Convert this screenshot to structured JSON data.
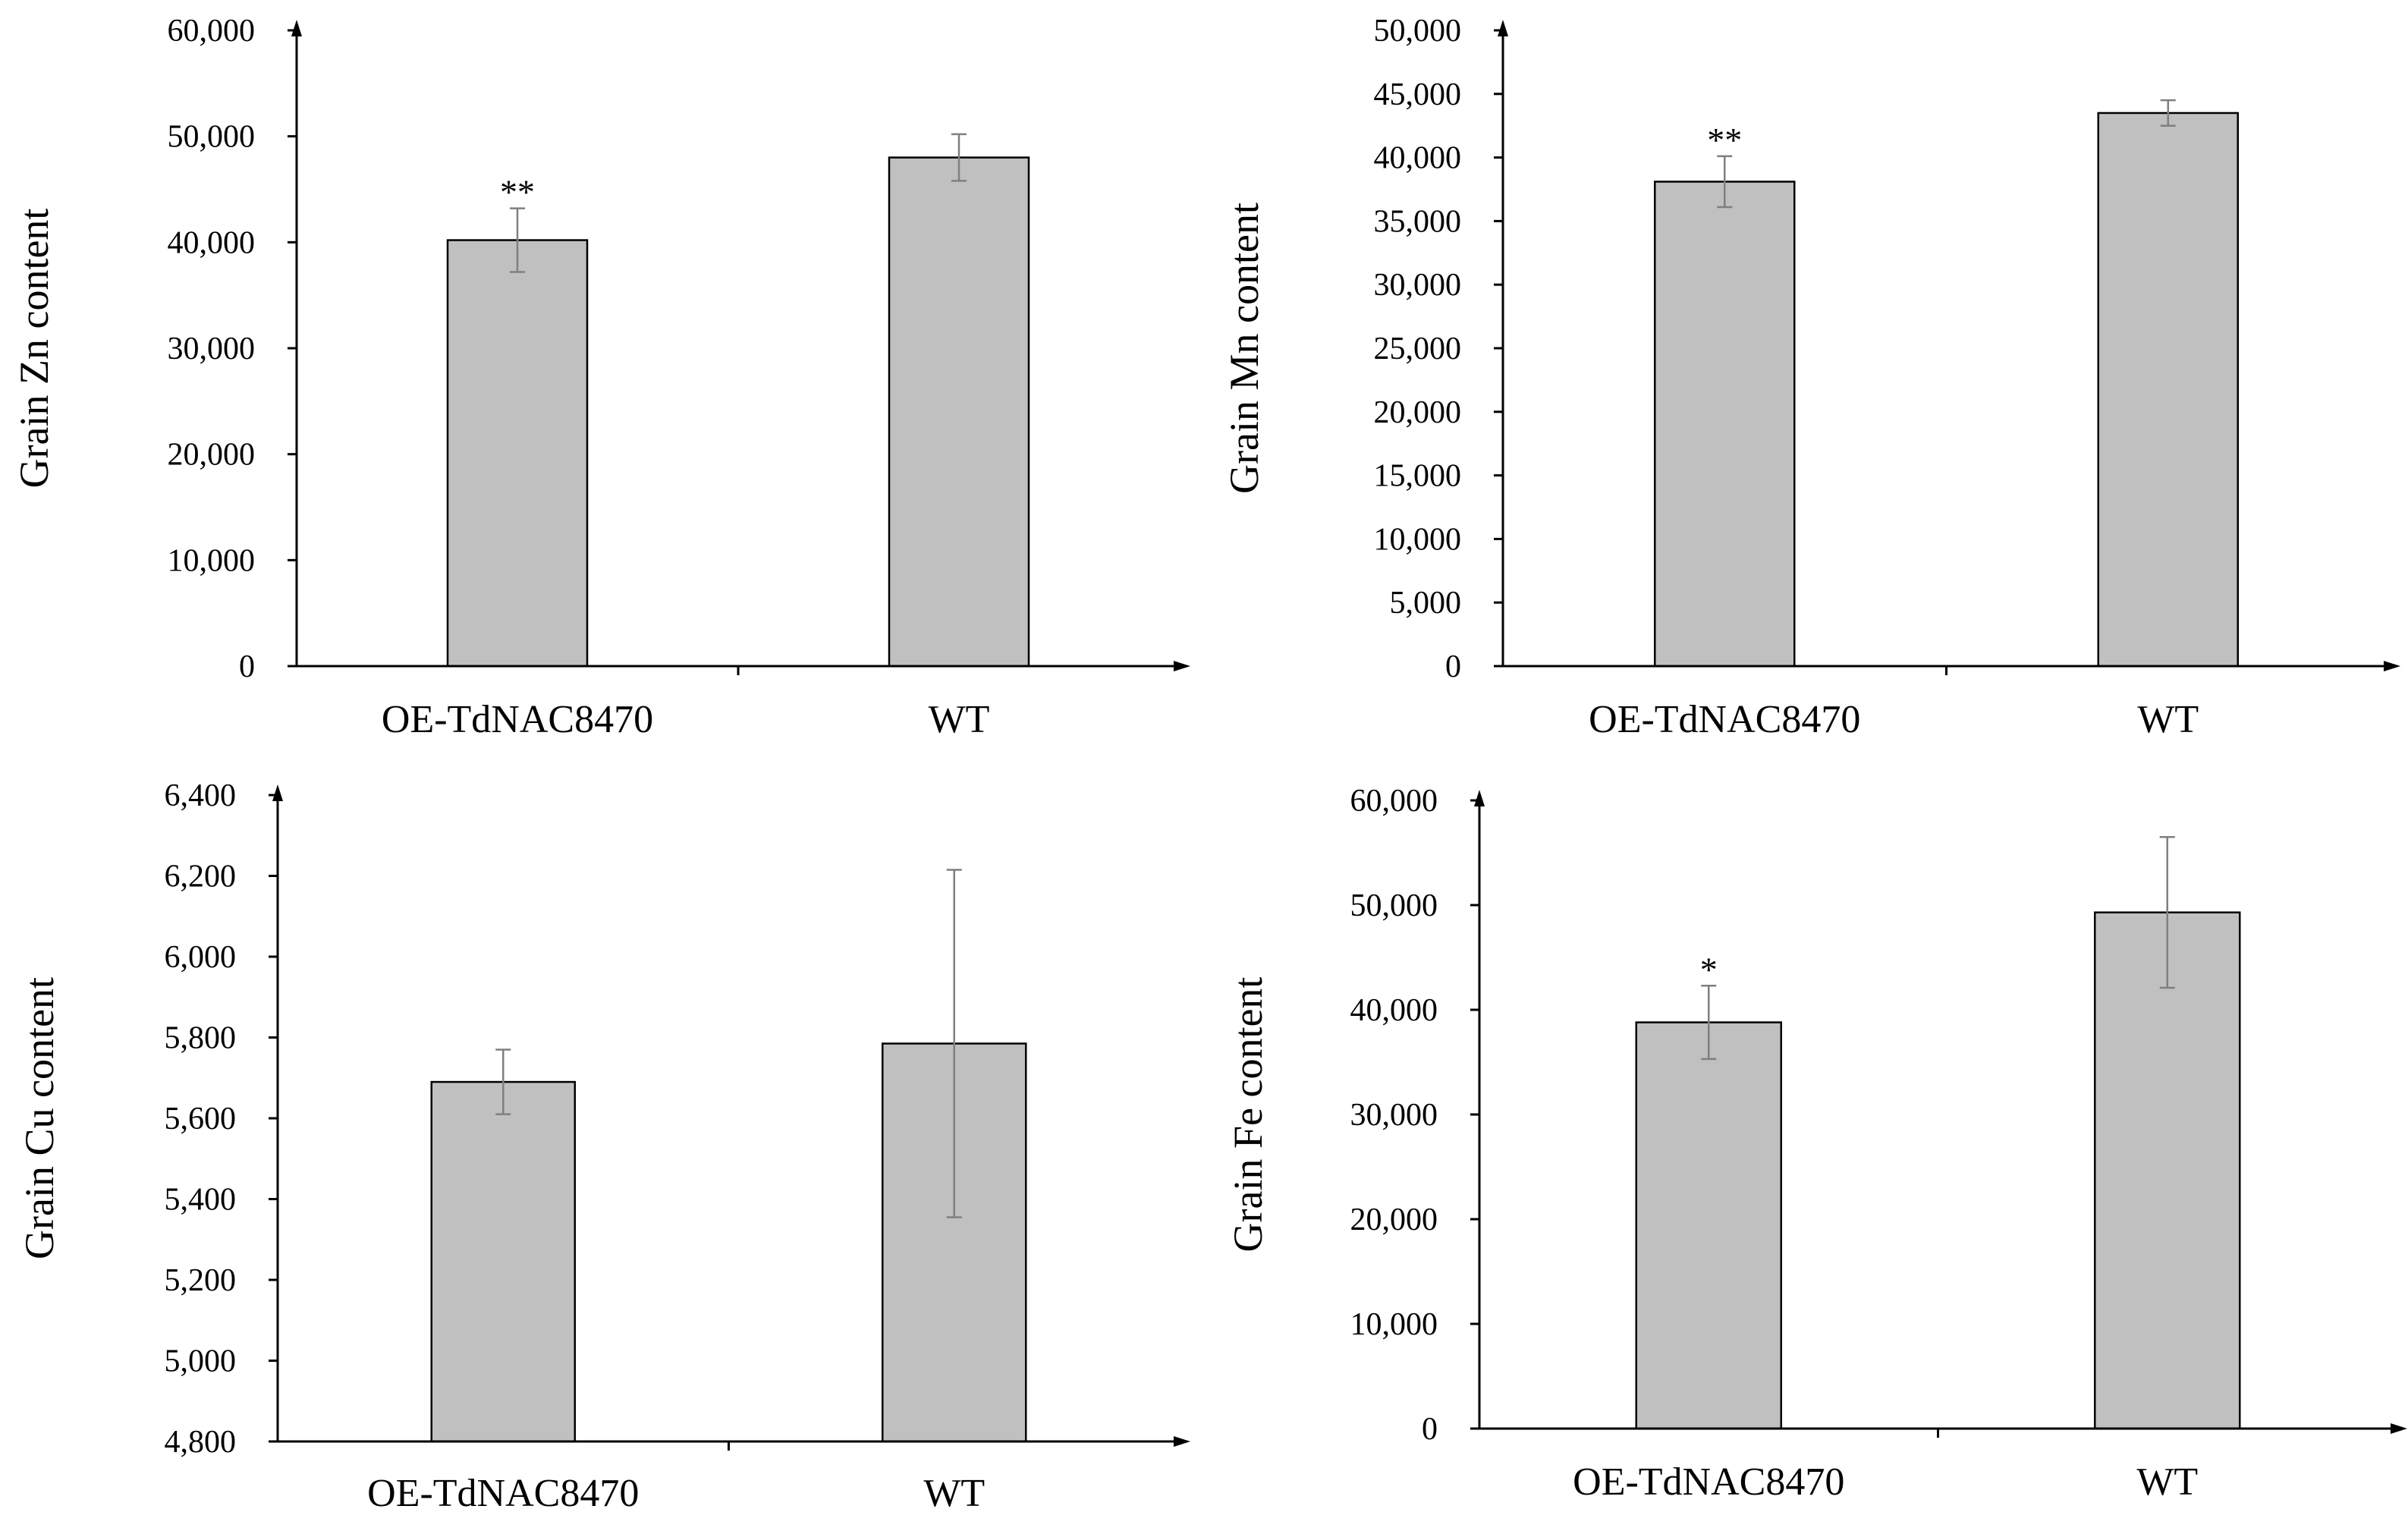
{
  "colors": {
    "bar_fill": "#c0c0c0",
    "bar_stroke": "#000000",
    "axis": "#000000",
    "error_bar": "#7f7f7f",
    "background": "#ffffff"
  },
  "chart_data": [
    {
      "id": "zn",
      "type": "bar",
      "title": "",
      "xlabel": "",
      "ylabel": "Grain Zn content",
      "categories": [
        "OE-TdNAC8470",
        "WT"
      ],
      "values": [
        40200,
        48000
      ],
      "errors": [
        3000,
        2200
      ],
      "annotations": [
        "**",
        ""
      ],
      "ylim": [
        0,
        60000
      ],
      "yticks": [
        0,
        10000,
        20000,
        30000,
        40000,
        50000,
        60000
      ],
      "ytick_labels": [
        "0",
        "10,000",
        "20,000",
        "30,000",
        "40,000",
        "50,000",
        "60,000"
      ],
      "grid": false
    },
    {
      "id": "mn",
      "type": "bar",
      "title": "",
      "xlabel": "",
      "ylabel": "Grain Mn content",
      "categories": [
        "OE-TdNAC8470",
        "WT"
      ],
      "values": [
        38100,
        43500
      ],
      "errors": [
        2000,
        1000
      ],
      "annotations": [
        "**",
        ""
      ],
      "ylim": [
        0,
        50000
      ],
      "yticks": [
        0,
        5000,
        10000,
        15000,
        20000,
        25000,
        30000,
        35000,
        40000,
        45000,
        50000
      ],
      "ytick_labels": [
        "0",
        "5,000",
        "10,000",
        "15,000",
        "20,000",
        "25,000",
        "30,000",
        "35,000",
        "40,000",
        "45,000",
        "50,000"
      ],
      "grid": false
    },
    {
      "id": "cu",
      "type": "bar",
      "title": "",
      "xlabel": "",
      "ylabel": "Grain Cu content",
      "categories": [
        "OE-TdNAC8470",
        "WT"
      ],
      "values": [
        5690,
        5785
      ],
      "errors": [
        80,
        430
      ],
      "annotations": [
        "",
        ""
      ],
      "ylim": [
        4800,
        6400
      ],
      "yticks": [
        4800,
        5000,
        5200,
        5400,
        5600,
        5800,
        6000,
        6200,
        6400
      ],
      "ytick_labels": [
        "4,800",
        "5,000",
        "5,200",
        "5,400",
        "5,600",
        "5,800",
        "6,000",
        "6,200",
        "6,400"
      ],
      "grid": false
    },
    {
      "id": "fe",
      "type": "bar",
      "title": "",
      "xlabel": "",
      "ylabel": "Grain Fe content",
      "categories": [
        "OE-TdNAC8470",
        "WT"
      ],
      "values": [
        38800,
        49300
      ],
      "errors": [
        3500,
        7200
      ],
      "annotations": [
        "*",
        ""
      ],
      "ylim": [
        0,
        60000
      ],
      "yticks": [
        0,
        10000,
        20000,
        30000,
        40000,
        50000,
        60000
      ],
      "ytick_labels": [
        "0",
        "10,000",
        "20,000",
        "30,000",
        "40,000",
        "50,000",
        "60,000"
      ],
      "grid": false
    }
  ]
}
